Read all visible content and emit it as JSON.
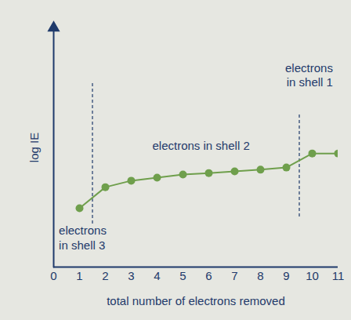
{
  "chart_data": {
    "type": "line",
    "x_label": "total number of electrons removed",
    "y_label": "log IE",
    "x": [
      1,
      2,
      3,
      4,
      5,
      6,
      7,
      8,
      9,
      10,
      11
    ],
    "values": [
      2.46,
      3.34,
      3.61,
      3.74,
      3.87,
      3.93,
      4.0,
      4.07,
      4.16,
      4.75,
      4.75
    ],
    "color": "#6f9f4c",
    "marker": "circle",
    "xlim": [
      0,
      11
    ],
    "xticks": [
      0,
      1,
      2,
      3,
      4,
      5,
      6,
      7,
      8,
      9,
      10,
      11
    ],
    "ylim": [
      0,
      10
    ],
    "yticks": [],
    "tick_labels": "x",
    "annotations": [
      {
        "text": "electrons\nin shell 3",
        "x": 0.2,
        "y": 1.8
      },
      {
        "text": "electrons in shell 2",
        "x": 5.7,
        "y": 4.9
      },
      {
        "text": "electrons\nin shell 1",
        "x": 10.8,
        "y": 8.6
      }
    ],
    "dividers": [
      {
        "x": 1.5,
        "y1": 1.8,
        "y2": 7.7
      },
      {
        "x": 9.5,
        "y1": 2.1,
        "y2": 6.4
      }
    ]
  }
}
